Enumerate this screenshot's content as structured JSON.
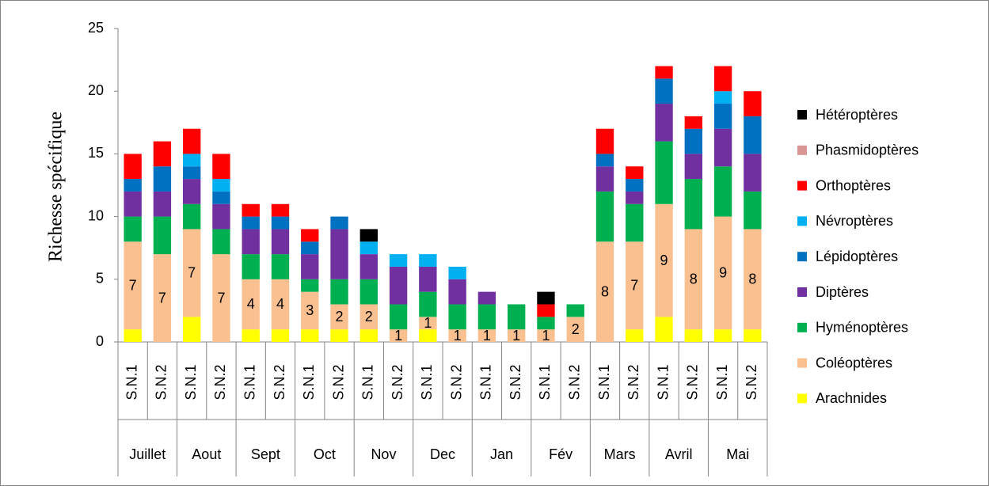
{
  "chart_data": {
    "type": "stacked_bar",
    "ylabel": "Richesse spécifique",
    "categories": [
      "S.N.1",
      "S.N.2",
      "S.N.1",
      "S.N.2",
      "S.N.1",
      "S.N.2",
      "S.N.1",
      "S.N.2",
      "S.N.1",
      "S.N.2",
      "S.N.1",
      "S.N.2",
      "S.N.1",
      "S.N.2",
      "S.N.1",
      "S.N.2",
      "S.N.1",
      "S.N.2",
      "S.N.1",
      "S.N.2",
      "S.N.1",
      "S.N.2"
    ],
    "category_groups": [
      "Juillet",
      "Aout",
      "Sept",
      "Oct",
      "Nov",
      "Dec",
      "Jan",
      "Fév",
      "Mars",
      "Avril",
      "Mai"
    ],
    "series": [
      {
        "name": "Arachnides",
        "color": "#ffff00",
        "values": [
          1,
          0,
          2,
          0,
          1,
          1,
          1,
          1,
          1,
          0,
          1,
          0,
          0,
          0,
          0,
          0,
          0,
          1,
          2,
          1,
          1,
          1
        ]
      },
      {
        "name": "Coléoptères",
        "color": "#fac090",
        "data_labels": true,
        "values": [
          7,
          7,
          7,
          7,
          4,
          4,
          3,
          2,
          2,
          1,
          1,
          1,
          1,
          1,
          1,
          2,
          8,
          7,
          9,
          8,
          9,
          8
        ]
      },
      {
        "name": "Hyménoptères",
        "color": "#00b050",
        "values": [
          2,
          3,
          2,
          2,
          2,
          2,
          1,
          2,
          2,
          2,
          2,
          2,
          2,
          2,
          1,
          1,
          4,
          3,
          5,
          4,
          4,
          3
        ]
      },
      {
        "name": "Diptères",
        "color": "#7030a0",
        "values": [
          2,
          2,
          2,
          2,
          2,
          2,
          2,
          4,
          2,
          3,
          2,
          2,
          1,
          0,
          0,
          0,
          2,
          1,
          3,
          2,
          3,
          3
        ]
      },
      {
        "name": "Lépidoptères",
        "color": "#0070c0",
        "values": [
          1,
          2,
          1,
          1,
          1,
          1,
          1,
          1,
          0,
          0,
          0,
          0,
          0,
          0,
          0,
          0,
          1,
          1,
          2,
          2,
          2,
          3
        ]
      },
      {
        "name": "Névroptères",
        "color": "#00b0f0",
        "values": [
          0,
          0,
          1,
          1,
          0,
          0,
          0,
          0,
          1,
          1,
          1,
          1,
          0,
          0,
          0,
          0,
          0,
          0,
          0,
          0,
          1,
          0
        ]
      },
      {
        "name": "Orthoptères",
        "color": "#ff0000",
        "values": [
          2,
          2,
          2,
          2,
          1,
          1,
          1,
          0,
          0,
          0,
          0,
          0,
          0,
          0,
          1,
          0,
          2,
          1,
          1,
          1,
          2,
          2
        ]
      },
      {
        "name": "Phasmidoptères",
        "color": "#d99594",
        "values": [
          0,
          0,
          0,
          0,
          0,
          0,
          0,
          0,
          0,
          0,
          0,
          0,
          0,
          0,
          0,
          0,
          0,
          0,
          0,
          0,
          0,
          0
        ]
      },
      {
        "name": "Hétéroptères",
        "color": "#000000",
        "values": [
          0,
          0,
          0,
          0,
          0,
          0,
          0,
          0,
          1,
          0,
          0,
          0,
          0,
          0,
          1,
          0,
          0,
          0,
          0,
          0,
          0,
          0
        ]
      }
    ],
    "ylim": [
      0,
      25
    ],
    "yticks": [
      0,
      5,
      10,
      15,
      20,
      25
    ],
    "grid": false,
    "legend": "right"
  }
}
